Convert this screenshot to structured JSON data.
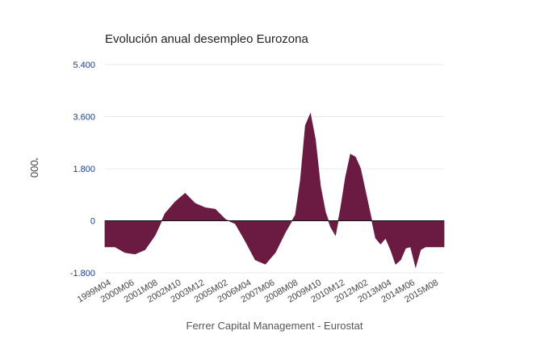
{
  "chart_data": {
    "type": "area",
    "title": "Evolución anual desempleo Eurozona",
    "xlabel": "Ferrer Capital Management - Eurostat",
    "ylabel": "'000",
    "ylim": [
      -1800,
      5400
    ],
    "yticks": [
      -1800,
      0,
      1800,
      3600,
      5400
    ],
    "ytick_labels": [
      "-1.800",
      "0",
      "1.800",
      "3.600",
      "5.400"
    ],
    "xticks": [
      "1999M04",
      "2000M06",
      "2001M08",
      "2002M10",
      "2003M12",
      "2005M02",
      "2006M04",
      "2007M06",
      "2008M08",
      "2009M10",
      "2010M12",
      "2012M02",
      "2013M04",
      "2014M06",
      "2015M08"
    ],
    "grid": true,
    "legend": "none",
    "colors": {
      "fill": "#6b1a42",
      "zero_line": "#111111",
      "grid": "#e8e8e8"
    },
    "x_start": "1999M04",
    "x_end": "2016M03",
    "series": [
      {
        "x": [
          "1999M04",
          "1999M10",
          "2000M04",
          "2000M10",
          "2001M04",
          "2001M10",
          "2002M04",
          "2002M10",
          "2003M04",
          "2003M10",
          "2004M04",
          "2004M10",
          "2005M04",
          "2005M10",
          "2006M04",
          "2006M10",
          "2007M04",
          "2007M10",
          "2008M04",
          "2008M10",
          "2009M01",
          "2009M04",
          "2009M07",
          "2009M10",
          "2010M01",
          "2010M04",
          "2010M07",
          "2010M10",
          "2011M01",
          "2011M04",
          "2011M07",
          "2011M10",
          "2012M01",
          "2012M04",
          "2012M07",
          "2012M10",
          "2013M01",
          "2013M04",
          "2013M07",
          "2013M10",
          "2014M01",
          "2014M04",
          "2014M07",
          "2014M10",
          "2015M01",
          "2015M04",
          "2015M07",
          "2015M10",
          "2016M01",
          "2016M03"
        ],
        "values": [
          -900,
          -900,
          -1100,
          -1150,
          -1000,
          -500,
          250,
          650,
          950,
          600,
          450,
          400,
          50,
          -100,
          -700,
          -1350,
          -1500,
          -1100,
          -400,
          200,
          1400,
          3300,
          3700,
          2800,
          1200,
          300,
          -200,
          -500,
          400,
          1500,
          2300,
          2200,
          1800,
          1000,
          200,
          -600,
          -800,
          -600,
          -1000,
          -1500,
          -1350,
          -950,
          -900,
          -1600,
          -1000,
          -900,
          -900,
          -900,
          -900,
          -900
        ]
      }
    ]
  }
}
